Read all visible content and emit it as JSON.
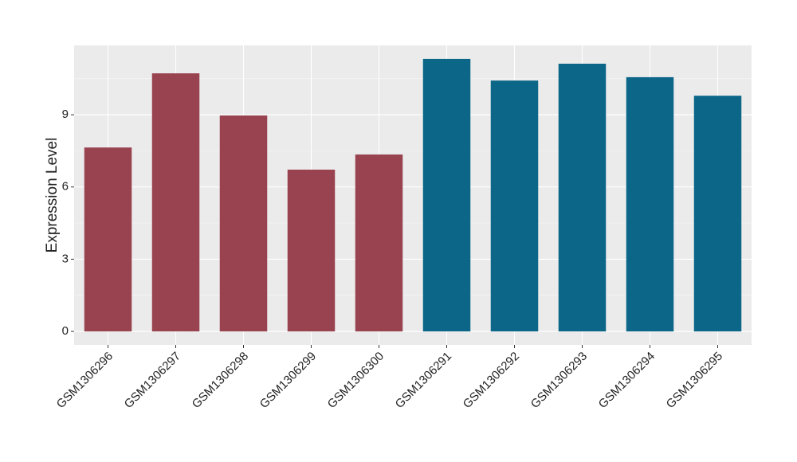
{
  "chart_data": {
    "type": "bar",
    "y_label": "Expression Level",
    "categories": [
      "GSM1306296",
      "GSM1306297",
      "GSM1306298",
      "GSM1306299",
      "GSM1306300",
      "GSM1306291",
      "GSM1306292",
      "GSM1306293",
      "GSM1306294",
      "GSM1306295"
    ],
    "values": [
      7.64,
      10.72,
      8.97,
      6.72,
      7.35,
      11.32,
      10.42,
      11.12,
      10.56,
      9.79
    ],
    "colors": [
      "#9a4350",
      "#9a4350",
      "#9a4350",
      "#9a4350",
      "#9a4350",
      "#0b6688",
      "#0b6688",
      "#0b6688",
      "#0b6688",
      "#0b6688"
    ],
    "ylim": [
      -0.56,
      11.88
    ],
    "yticks": [
      0,
      3,
      6,
      9
    ],
    "grid": true
  }
}
